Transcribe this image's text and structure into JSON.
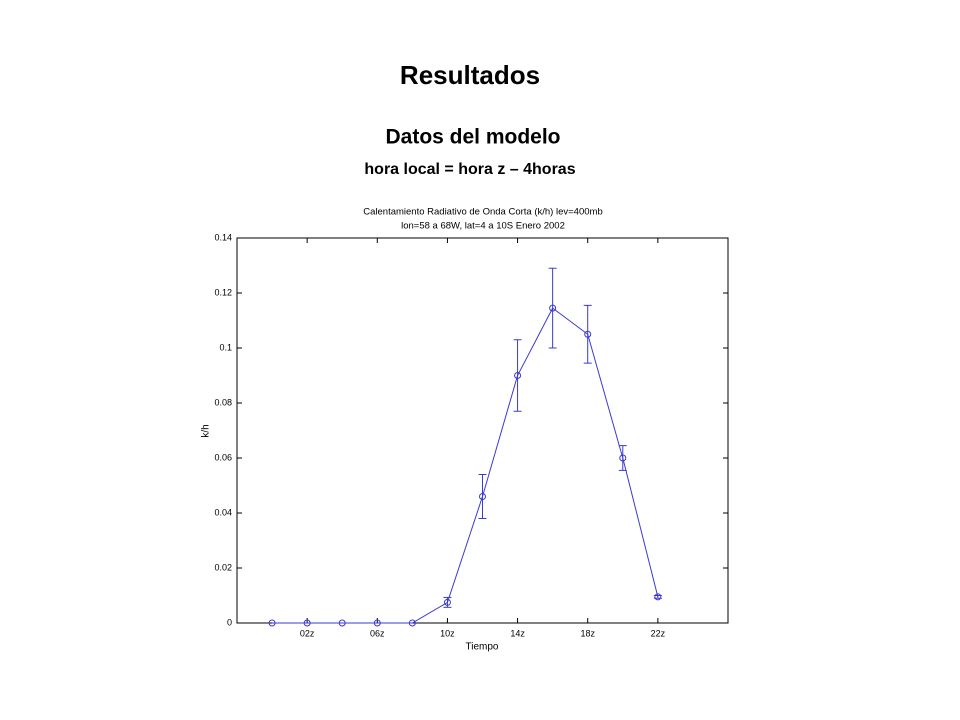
{
  "slide": {
    "title": "Resultados",
    "subtitle": "Datos del modelo",
    "note": "hora local = hora z – 4horas"
  },
  "chart_data": {
    "type": "errorbar-line",
    "title": [
      "Calentamiento Radiativo de Onda Corta (k/h) lev=400mb",
      "lon=58 a 68W, lat=4 a 10S Enero 2002"
    ],
    "xlabel": "Tiempo",
    "ylabel": "k/h",
    "x": [
      0,
      2,
      4,
      6,
      8,
      10,
      12,
      14,
      16,
      18,
      20,
      22
    ],
    "values": [
      0,
      0,
      0,
      0,
      0,
      0.0075,
      0.046,
      0.09,
      0.1145,
      0.105,
      0.06,
      0.0095
    ],
    "errors": [
      null,
      null,
      null,
      null,
      null,
      0.0018,
      0.008,
      0.013,
      0.0145,
      0.0105,
      0.0045,
      0.0005
    ],
    "color": "#3a3ad0",
    "xlim": [
      -2,
      26
    ],
    "xticks": [
      {
        "value": 2,
        "label": "02z"
      },
      {
        "value": 6,
        "label": "06z"
      },
      {
        "value": 10,
        "label": "10z"
      },
      {
        "value": 14,
        "label": "14z"
      },
      {
        "value": 18,
        "label": "18z"
      },
      {
        "value": 22,
        "label": "22z"
      }
    ],
    "ylim": [
      0,
      0.14
    ],
    "yticks": [
      0,
      0.02,
      0.04,
      0.06,
      0.08,
      0.1,
      0.12,
      0.14
    ],
    "grid": false
  }
}
